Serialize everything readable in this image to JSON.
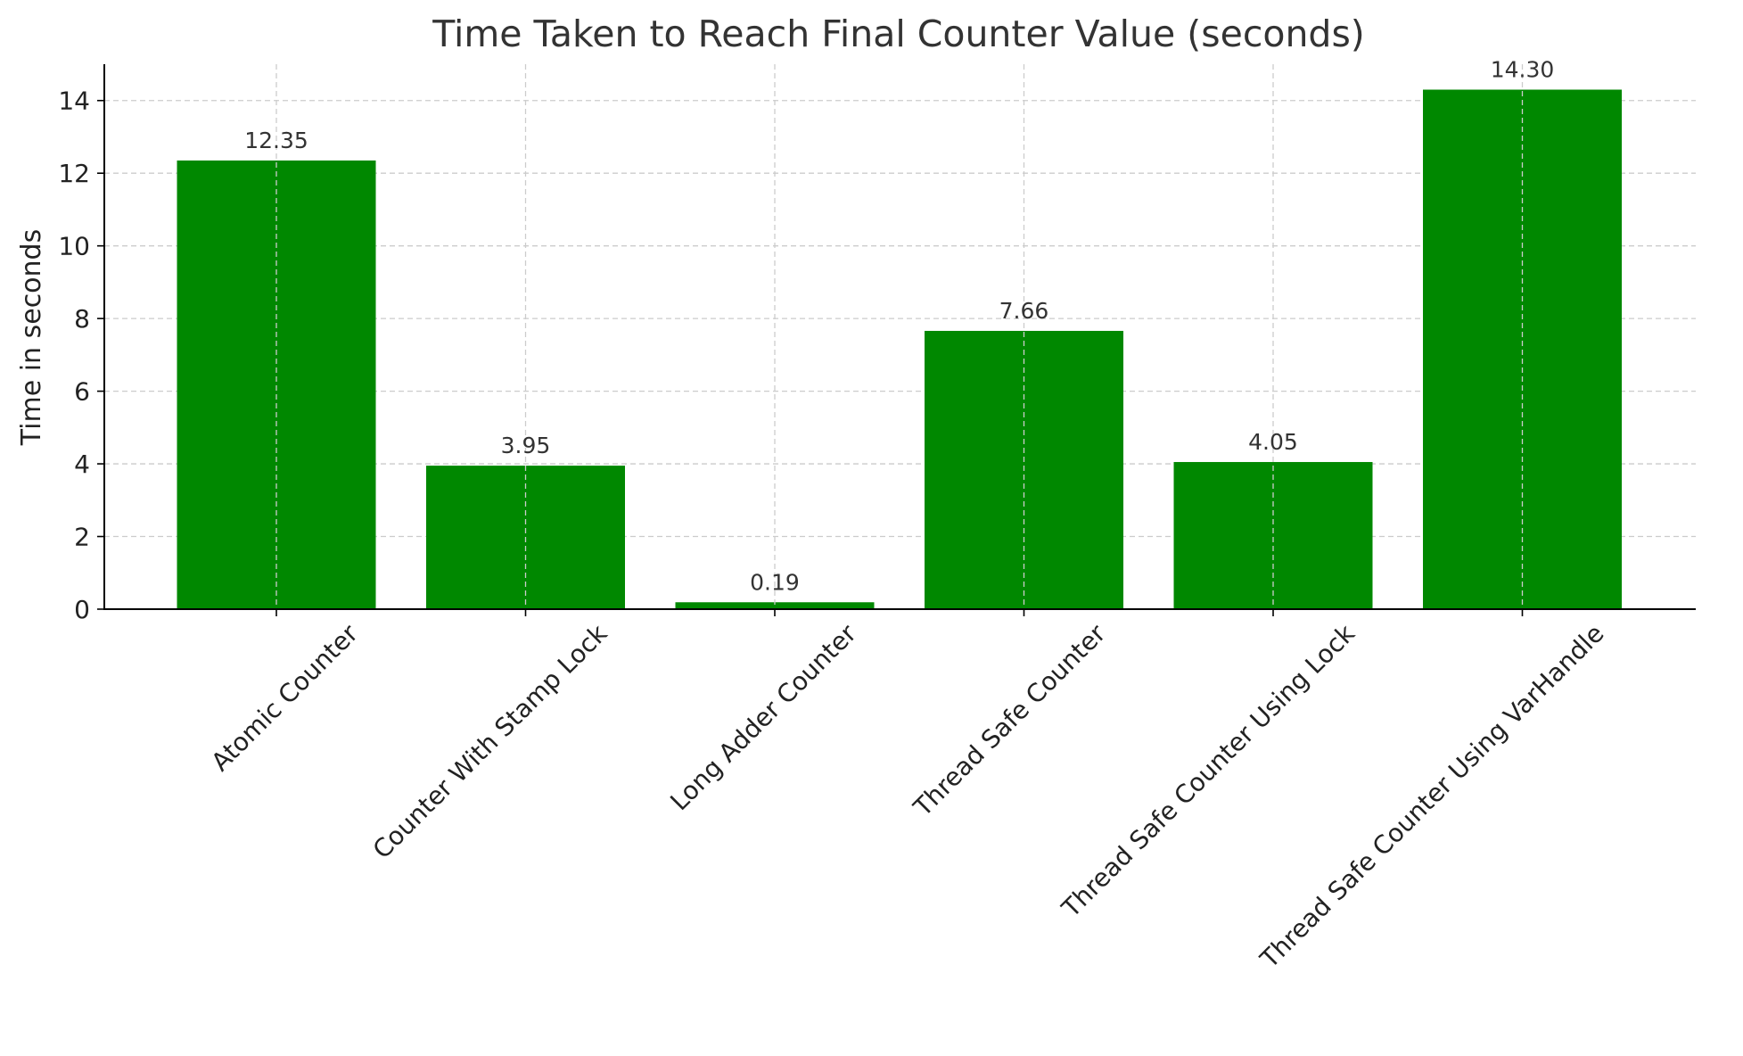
{
  "chart_data": {
    "type": "bar",
    "title": "Time Taken to Reach Final Counter Value (seconds)",
    "xlabel": "",
    "ylabel": "Time in seconds",
    "categories": [
      "Atomic Counter",
      "Counter With Stamp Lock",
      "Long Adder Counter",
      "Thread Safe Counter",
      "Thread Safe Counter Using Lock",
      "Thread Safe Counter Using VarHandle"
    ],
    "values": [
      12.35,
      3.95,
      0.19,
      7.66,
      4.05,
      14.3
    ],
    "value_labels": [
      "12.35",
      "3.95",
      "0.19",
      "7.66",
      "4.05",
      "14.30"
    ],
    "ylim": [
      0,
      15
    ],
    "yticks": [
      0,
      2,
      4,
      6,
      8,
      10,
      12,
      14
    ],
    "grid": true,
    "bar_color": "#008800"
  }
}
